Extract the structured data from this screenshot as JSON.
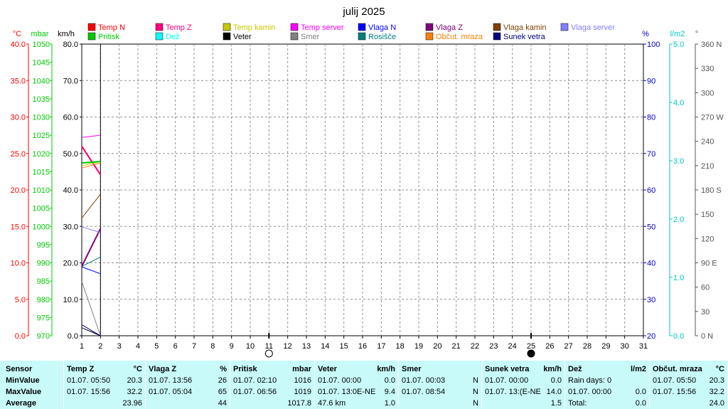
{
  "chart_data": {
    "type": "line",
    "title": "julij 2025",
    "x": [
      1,
      2
    ],
    "x_ticks": [
      "1",
      "2",
      "3",
      "4",
      "5",
      "6",
      "7",
      "8",
      "9",
      "10",
      "11",
      "12",
      "13",
      "14",
      "15",
      "16",
      "17",
      "18",
      "19",
      "20",
      "21",
      "22",
      "23",
      "24",
      "25",
      "26",
      "27",
      "28",
      "29",
      "30",
      "31"
    ],
    "xlim": [
      1,
      31
    ],
    "grid": true,
    "axes": [
      {
        "key": "temp",
        "label": "°C",
        "color": "#ff0000",
        "min": 0,
        "max": 40,
        "ticks": [
          "0.0",
          "5.0",
          "10.0",
          "15.0",
          "20.0",
          "25.0",
          "30.0",
          "35.0",
          "40.0"
        ]
      },
      {
        "key": "press",
        "label": "mbar",
        "color": "#00c800",
        "min": 970,
        "max": 1050,
        "ticks": [
          "970",
          "975",
          "980",
          "985",
          "990",
          "995",
          "1000",
          "1005",
          "1010",
          "1015",
          "1020",
          "1025",
          "1030",
          "1035",
          "1040",
          "1045",
          "1050"
        ]
      },
      {
        "key": "wind",
        "label": "km/h",
        "color": "#000000",
        "min": 0,
        "max": 80,
        "ticks": [
          "0.0",
          "10.0",
          "20.0",
          "30.0",
          "40.0",
          "50.0",
          "60.0",
          "70.0",
          "80.0"
        ]
      },
      {
        "key": "hum",
        "label": "%",
        "color": "#0000c8",
        "min": 20,
        "max": 100,
        "ticks": [
          "20",
          "30",
          "40",
          "50",
          "60",
          "70",
          "80",
          "90",
          "100"
        ]
      },
      {
        "key": "rain",
        "label": "l/m2",
        "color": "#00c8c8",
        "min": 0,
        "max": 5,
        "ticks": [
          "0.0",
          "1.0",
          "2.0",
          "3.0",
          "4.0",
          "5.0"
        ]
      },
      {
        "key": "dir",
        "label": "°",
        "color": "#555555",
        "min": 0,
        "max": 360,
        "ticks": [
          "0 N",
          "30",
          "60",
          "90 E",
          "120",
          "150",
          "180 S",
          "210",
          "240",
          "270 W",
          "300",
          "330",
          "360 N"
        ]
      }
    ],
    "legend": [
      {
        "name": "Temp N",
        "color": "#ff0000"
      },
      {
        "name": "Temp Z",
        "color": "#ff0080"
      },
      {
        "name": "Temp kamin",
        "color": "#c8c800"
      },
      {
        "name": "Temp server",
        "color": "#ff00ff"
      },
      {
        "name": "Vlaga N",
        "color": "#0000ff"
      },
      {
        "name": "Vlaga Z",
        "color": "#800080"
      },
      {
        "name": "Vlaga kamin",
        "color": "#804000"
      },
      {
        "name": "Vlaga server",
        "color": "#8080ff"
      },
      {
        "name": "Pritisk",
        "color": "#00c800"
      },
      {
        "name": "Dež",
        "color": "#00ffff"
      },
      {
        "name": "Veter",
        "color": "#000000"
      },
      {
        "name": "Smer",
        "color": "#808080"
      },
      {
        "name": "Rosišče",
        "color": "#008080"
      },
      {
        "name": "Občut. mraza",
        "color": "#ff8000"
      },
      {
        "name": "Sunek vetra",
        "color": "#000080"
      }
    ],
    "series": [
      {
        "name": "Temp N",
        "axis": "temp",
        "color": "#ff0000",
        "width": 1,
        "values": [
          25.9,
          22.0
        ]
      },
      {
        "name": "Temp Z",
        "axis": "temp",
        "color": "#ff0080",
        "width": 2,
        "values": [
          26.0,
          22.1
        ]
      },
      {
        "name": "Temp kamin",
        "axis": "temp",
        "color": "#c8c800",
        "width": 1,
        "values": [
          23.3,
          23.9
        ]
      },
      {
        "name": "Temp server",
        "axis": "temp",
        "color": "#ff00ff",
        "width": 1,
        "values": [
          27.2,
          27.5
        ]
      },
      {
        "name": "Rosišče",
        "axis": "temp",
        "color": "#008080",
        "width": 1,
        "values": [
          9.5,
          10.8
        ]
      },
      {
        "name": "Občut. mraza",
        "axis": "temp",
        "color": "#ff8000",
        "width": 1,
        "values": [
          23.0,
          23.7
        ]
      },
      {
        "name": "Pritisk",
        "axis": "press",
        "color": "#00c800",
        "width": 2,
        "values": [
          1017.4,
          1017.8
        ]
      },
      {
        "name": "Vlaga N",
        "axis": "hum",
        "color": "#0000ff",
        "width": 1,
        "values": [
          38.9,
          37.0
        ]
      },
      {
        "name": "Vlaga Z",
        "axis": "hum",
        "color": "#800080",
        "width": 2,
        "values": [
          39.0,
          49.4
        ]
      },
      {
        "name": "Vlaga kamin",
        "axis": "hum",
        "color": "#804000",
        "width": 1,
        "values": [
          52.3,
          58.8
        ]
      },
      {
        "name": "Vlaga server",
        "axis": "hum",
        "color": "#8080ff",
        "width": 1,
        "values": [
          49.9,
          48.3
        ]
      },
      {
        "name": "Smer",
        "axis": "dir",
        "color": "#808080",
        "width": 1,
        "values": [
          67,
          0
        ]
      },
      {
        "name": "Veter",
        "axis": "wind",
        "color": "#000000",
        "width": 1,
        "values": [
          2.2,
          0.0
        ]
      },
      {
        "name": "Sunek vetra",
        "axis": "wind",
        "color": "#000080",
        "width": 1,
        "values": [
          3.0,
          0.0
        ]
      }
    ],
    "moon_markers": [
      {
        "day": 11,
        "phase": "full"
      },
      {
        "day": 25,
        "phase": "new"
      }
    ]
  },
  "stats": {
    "row_labels": [
      "Sensor",
      "MinValue",
      "MaxValue",
      "Average"
    ],
    "columns": [
      {
        "name": "Temp Z",
        "unit": "°C",
        "min_time": "01.07.  05:50",
        "min_val": "20.3",
        "max_time": "01.07.  15:56",
        "max_val": "32.2",
        "avg_left": "",
        "avg_val": "23.96"
      },
      {
        "name": "Vlaga Z",
        "unit": "%",
        "min_time": "01.07.  13:56",
        "min_val": "26",
        "max_time": "01.07.  05:04",
        "max_val": "65",
        "avg_left": "",
        "avg_val": "44"
      },
      {
        "name": "Pritisk",
        "unit": "mbar",
        "min_time": "01.07.  02:10",
        "min_val": "1016",
        "max_time": "01.07.  06:56",
        "max_val": "1019",
        "avg_left": "",
        "avg_val": "1017.8"
      },
      {
        "name": "Veter",
        "unit": "km/h",
        "min_time": "01.07.  00:00",
        "min_val": "0.0",
        "max_time": "01.07.  13:0E-NE",
        "max_val": "9.4",
        "avg_left": "47.6 km",
        "avg_val": "1.0"
      },
      {
        "name": "Smer",
        "unit": "",
        "min_time": "01.07.  00:03",
        "min_val": "N",
        "max_time": "01.07.  08:54",
        "max_val": "N",
        "avg_left": "",
        "avg_val": "N"
      },
      {
        "name": "Sunek vetra",
        "unit": "km/h",
        "min_time": "01.07.  00:00",
        "min_val": "0.0",
        "max_time": "01.07.  13:(E-NE",
        "max_val": "14.0",
        "avg_left": "",
        "avg_val": "1.5"
      },
      {
        "name": "Dež",
        "unit": "l/m2",
        "min_time": "Rain days: 0",
        "min_val": "",
        "max_time": "01.07.  00:00",
        "max_val": "0.0",
        "avg_left": "Total:",
        "avg_val": "0.0"
      },
      {
        "name": "Občut. mraza",
        "unit": "°C",
        "min_time": "01.07.  05:50",
        "min_val": "20.3",
        "max_time": "01.07.  15:56",
        "max_val": "32.2",
        "avg_left": "",
        "avg_val": "24.0"
      }
    ]
  }
}
